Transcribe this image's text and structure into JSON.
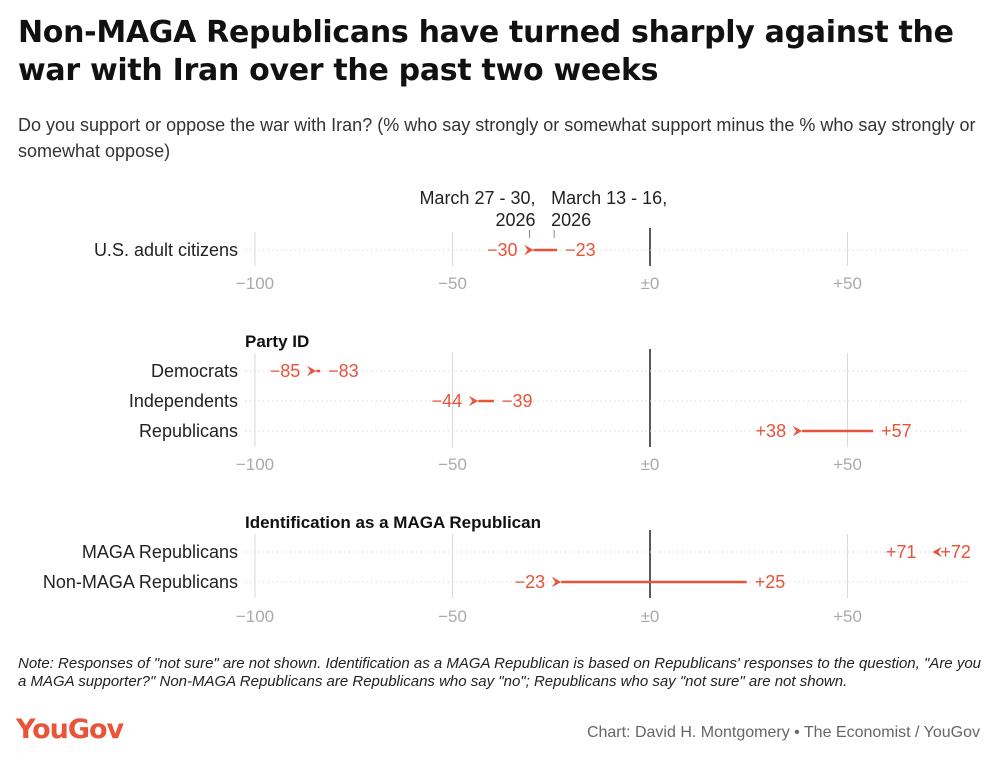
{
  "title": "Non-MAGA Republicans have turned sharply against the war with Iran over the past two weeks",
  "subtitle": "Do you support or oppose the war with Iran? (% who say strongly or somewhat support minus the % who say strongly or somewhat oppose)",
  "note": "Note: Responses of \"not sure\" are not shown. Identification as a MAGA Republican is based on Republicans' responses to the question, \"Are you a MAGA supporter?\" Non-MAGA Republicans are Republicans who say \"no\"; Republicans who say \"not sure\" are not shown.",
  "logo": "YouGov",
  "credit": "Chart: David H. Montgomery • The Economist / YouGov",
  "colors": {
    "arrow": "#e8533a",
    "grid": "#d9d9d9",
    "zero": "#222222",
    "tick": "#aaaaaa",
    "logo": "#e8533a"
  },
  "chart_data": {
    "type": "arrow-dot",
    "xlim": [
      -100,
      80
    ],
    "ticks": [
      -100,
      -50,
      0,
      50
    ],
    "tick_labels": [
      "−100",
      "−50",
      "±0",
      "+50"
    ],
    "legend": {
      "new": "March 27 - 30, 2026",
      "old": "March 13 - 16, 2026"
    },
    "groups": [
      {
        "heading": "",
        "rows": [
          {
            "label": "U.S. adult citizens",
            "old": -23,
            "new": -30,
            "old_label": "−23",
            "new_label": "−30"
          }
        ]
      },
      {
        "heading": "Party ID",
        "rows": [
          {
            "label": "Democrats",
            "old": -83,
            "new": -85,
            "old_label": "−83",
            "new_label": "−85"
          },
          {
            "label": "Independents",
            "old": -39,
            "new": -44,
            "old_label": "−39",
            "new_label": "−44"
          },
          {
            "label": "Republicans",
            "old": 57,
            "new": 38,
            "old_label": "+57",
            "new_label": "+38"
          }
        ]
      },
      {
        "heading": "Identification as a MAGA Republican",
        "rows": [
          {
            "label": "MAGA Republicans",
            "old": 72,
            "new": 71,
            "old_label": "+72",
            "new_label": "+71"
          },
          {
            "label": "Non-MAGA Republicans",
            "old": 25,
            "new": -23,
            "old_label": "+25",
            "new_label": "−23"
          }
        ]
      }
    ]
  }
}
